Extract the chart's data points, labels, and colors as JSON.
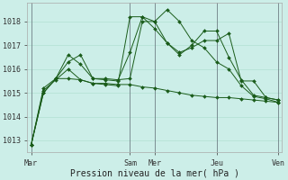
{
  "xlabel": "Pression niveau de la mer( hPa )",
  "background_color": "#cceee8",
  "grid_color": "#aaddcc",
  "line_color": "#1a5c1a",
  "ylim": [
    1012.5,
    1018.8
  ],
  "xtick_labels": [
    "Mar",
    "Sam",
    "Mer",
    "Jeu",
    "Ven"
  ],
  "xtick_positions": [
    0,
    8,
    10,
    15,
    20
  ],
  "ytick_labels": [
    "1013",
    "1014",
    "1015",
    "1016",
    "1017",
    "1018"
  ],
  "ytick_values": [
    1013,
    1014,
    1015,
    1016,
    1017,
    1018
  ],
  "series": [
    [
      1012.8,
      1015.0,
      1015.6,
      1015.6,
      1015.55,
      1015.4,
      1015.35,
      1015.3,
      1018.2,
      1018.2,
      1018.0,
      1018.5,
      1018.0,
      1017.2,
      1016.9,
      1016.3,
      1016.0,
      1015.3,
      1014.85,
      1014.75,
      1014.6
    ],
    [
      1012.8,
      1015.0,
      1015.6,
      1016.3,
      1016.6,
      1015.6,
      1015.55,
      1015.5,
      1016.7,
      1018.2,
      1017.7,
      1017.1,
      1016.6,
      1017.0,
      1017.6,
      1017.6,
      1016.5,
      1015.55,
      1014.9,
      1014.8,
      1014.7
    ],
    [
      1012.8,
      1015.2,
      1015.6,
      1016.6,
      1016.2,
      1015.6,
      1015.6,
      1015.55,
      1015.6,
      1018.0,
      1018.0,
      1017.1,
      1016.7,
      1016.9,
      1017.2,
      1017.2,
      1017.5,
      1015.5,
      1015.5,
      1014.8,
      1014.7
    ],
    [
      1012.8,
      1015.1,
      1015.55,
      1016.0,
      1015.55,
      1015.4,
      1015.4,
      1015.35,
      1015.35,
      1015.25,
      1015.2,
      1015.1,
      1015.0,
      1014.9,
      1014.85,
      1014.8,
      1014.8,
      1014.75,
      1014.7,
      1014.65,
      1014.6
    ]
  ],
  "x_points": [
    0,
    1,
    2,
    3,
    4,
    5,
    6,
    7,
    8,
    9,
    10,
    11,
    12,
    13,
    14,
    15,
    16,
    17,
    18,
    19,
    20
  ],
  "vline_positions": [
    0,
    8,
    10,
    15,
    20
  ],
  "vline_color": "#555566"
}
